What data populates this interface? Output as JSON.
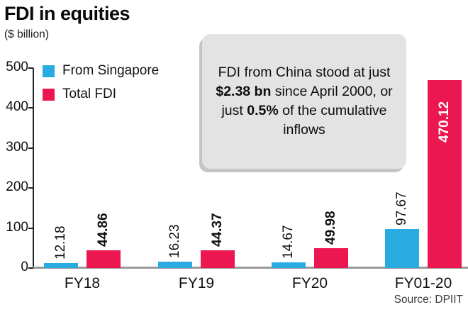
{
  "header": {
    "title": "FDI in equities",
    "subtitle": "($ billion)"
  },
  "legend": {
    "items": [
      {
        "label": "From Singapore",
        "color": "#29abe2"
      },
      {
        "label": "Total FDI",
        "color": "#ec1651"
      }
    ]
  },
  "annotation": {
    "segments": [
      "FDI from China stood at just ",
      "$2.38 bn",
      " since April 2000, or just ",
      "0.5%",
      " of the cumulative inflows"
    ]
  },
  "source": "Source: DPIIT",
  "chart_data": {
    "type": "bar",
    "title": "FDI in equities",
    "unit": "($ billion)",
    "categories": [
      "FY18",
      "FY19",
      "FY20",
      "FY01-20"
    ],
    "series": [
      {
        "name": "From Singapore",
        "color": "#29abe2",
        "values": [
          12.18,
          16.23,
          14.67,
          97.67
        ]
      },
      {
        "name": "Total FDI",
        "color": "#ec1651",
        "values": [
          44.86,
          44.37,
          49.98,
          470.12
        ]
      }
    ],
    "ylim": [
      0,
      500
    ],
    "yticks": [
      0,
      100,
      200,
      300,
      400,
      500
    ],
    "grid": false,
    "legend_position": "top-left",
    "value_labels_rotated": true,
    "source": "DPIIT"
  }
}
